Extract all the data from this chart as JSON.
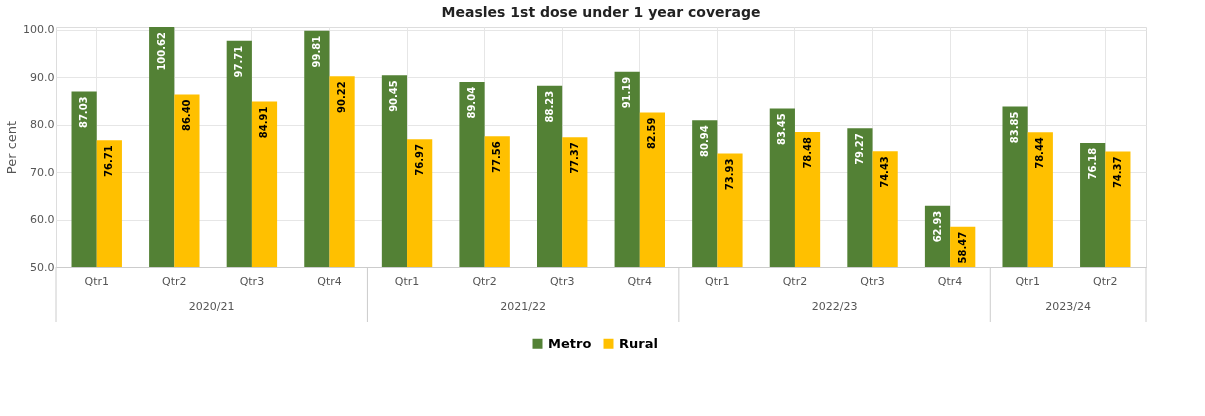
{
  "chart_data": {
    "type": "bar",
    "title": "Measles 1st dose under 1 year coverage",
    "ylabel": "Per cent",
    "categories": [
      "Qtr1",
      "Qtr2",
      "Qtr3",
      "Qtr4",
      "Qtr1",
      "Qtr2",
      "Qtr3",
      "Qtr4",
      "Qtr1",
      "Qtr2",
      "Qtr3",
      "Qtr4",
      "Qtr1",
      "Qtr2"
    ],
    "annotations": [
      "2020/21",
      "2021/22",
      "2022/23",
      "2023/24"
    ],
    "series": [
      {
        "name": "Metro",
        "color": "#538135",
        "values": [
          87.03,
          100.62,
          97.71,
          99.81,
          90.45,
          89.04,
          88.23,
          91.19,
          80.94,
          83.45,
          79.27,
          62.93,
          83.85,
          76.18
        ],
        "value_labels": [
          "87.03",
          "100.62",
          "97.71",
          "99.81",
          "90.45",
          "89.04",
          "88.23",
          "91.19",
          "80.94",
          "83.45",
          "79.27",
          "62.93",
          "83.85",
          "76.18"
        ]
      },
      {
        "name": "Rural",
        "color": "#ffc000",
        "values": [
          76.71,
          86.4,
          84.91,
          90.22,
          76.97,
          77.56,
          77.37,
          82.59,
          73.93,
          78.48,
          74.43,
          58.47,
          78.44,
          74.37
        ],
        "value_labels": [
          "76.71",
          "86.40",
          "84.91",
          "90.22",
          "76.97",
          "77.56",
          "77.37",
          "82.59",
          "73.93",
          "78.48",
          "74.43",
          "58.47",
          "78.44",
          "74.37"
        ]
      }
    ],
    "ylim": [
      50,
      100.62
    ],
    "yticks": [
      {
        "value": 50,
        "label": "50.0"
      },
      {
        "value": 60,
        "label": "60.0"
      },
      {
        "value": 70,
        "label": "70.0"
      },
      {
        "value": 80,
        "label": "80.0"
      },
      {
        "value": 90,
        "label": "90.0"
      },
      {
        "value": 100,
        "label": "100.0"
      }
    ],
    "grid": true,
    "legend": "bottom"
  }
}
